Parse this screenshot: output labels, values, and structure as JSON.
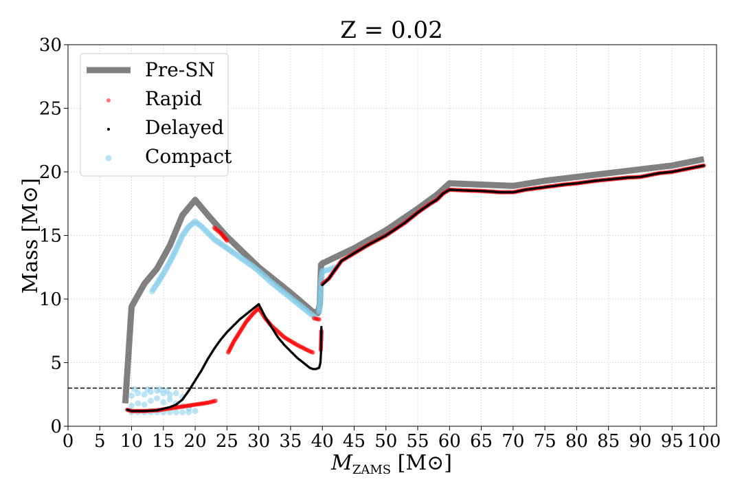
{
  "chart_data": {
    "type": "line",
    "title": "Z = 0.02",
    "xlabel_main": "M",
    "xlabel_sub": "ZAMS",
    "xlabel_unit": "[M⊙]",
    "ylabel": "Mass [M⊙]",
    "xlim": [
      0,
      102
    ],
    "ylim": [
      0,
      30
    ],
    "xticks": [
      0,
      5,
      10,
      15,
      20,
      25,
      30,
      35,
      40,
      45,
      50,
      55,
      60,
      65,
      70,
      75,
      80,
      85,
      90,
      95,
      100
    ],
    "yticks": [
      0,
      5,
      10,
      15,
      20,
      25,
      30
    ],
    "grid": true,
    "legend_position": "top-left",
    "threshold_line": {
      "y": 3.0,
      "style": "dashed",
      "color": "#000000"
    },
    "series": [
      {
        "name": "Pre-SN",
        "kind": "line",
        "color": "#808080",
        "points": [
          [
            9.0,
            1.8
          ],
          [
            10.0,
            9.4
          ],
          [
            12.0,
            11.2
          ],
          [
            14.0,
            12.4
          ],
          [
            16.0,
            14.2
          ],
          [
            18.0,
            16.6
          ],
          [
            20.0,
            17.8
          ],
          [
            22.0,
            16.6
          ],
          [
            25.0,
            14.9
          ],
          [
            30.0,
            12.5
          ],
          [
            35.0,
            10.5
          ],
          [
            38.5,
            9.0
          ],
          [
            39.3,
            8.9
          ],
          [
            39.6,
            9.6
          ],
          [
            39.8,
            12.7
          ],
          [
            40.0,
            12.8
          ],
          [
            45.0,
            14.0
          ],
          [
            50.0,
            15.4
          ],
          [
            55.0,
            17.1
          ],
          [
            58.0,
            18.2
          ],
          [
            60.0,
            19.1
          ],
          [
            65.0,
            19.0
          ],
          [
            70.0,
            18.9
          ],
          [
            75.0,
            19.3
          ],
          [
            80.0,
            19.6
          ],
          [
            85.0,
            19.9
          ],
          [
            90.0,
            20.2
          ],
          [
            95.0,
            20.5
          ],
          [
            100.0,
            21.0
          ]
        ]
      },
      {
        "name": "Rapid",
        "kind": "scatter",
        "color": "#ff0000",
        "segments": [
          [
            [
              9.3,
              1.3
            ],
            [
              10.0,
              1.2
            ],
            [
              12.0,
              1.2
            ],
            [
              14.0,
              1.25
            ],
            [
              16.0,
              1.4
            ],
            [
              18.0,
              1.55
            ],
            [
              20.0,
              1.7
            ],
            [
              22.0,
              1.85
            ],
            [
              23.2,
              2.0
            ]
          ],
          [
            [
              23.0,
              15.6
            ],
            [
              24.0,
              15.2
            ],
            [
              25.0,
              14.6
            ]
          ],
          [
            [
              25.2,
              5.8
            ],
            [
              26.0,
              6.6
            ],
            [
              27.0,
              7.4
            ],
            [
              28.0,
              8.2
            ],
            [
              29.0,
              8.8
            ],
            [
              30.0,
              9.3
            ],
            [
              31.0,
              8.5
            ],
            [
              32.0,
              7.9
            ],
            [
              34.0,
              7.0
            ],
            [
              36.0,
              6.4
            ],
            [
              38.0,
              5.9
            ],
            [
              38.5,
              5.8
            ]
          ],
          [
            [
              38.7,
              8.5
            ],
            [
              39.0,
              8.45
            ],
            [
              39.5,
              8.4
            ]
          ],
          [
            [
              39.75,
              6.0
            ],
            [
              39.8,
              6.6
            ],
            [
              39.85,
              7.5
            ]
          ],
          [
            [
              40.0,
              11.2
            ],
            [
              41.0,
              11.6
            ],
            [
              42.0,
              12.3
            ],
            [
              43.0,
              13.0
            ],
            [
              45.0,
              13.6
            ],
            [
              47.0,
              14.2
            ],
            [
              50.0,
              15.0
            ],
            [
              53.0,
              16.0
            ],
            [
              55.0,
              16.8
            ],
            [
              57.0,
              17.5
            ],
            [
              58.0,
              17.8
            ],
            [
              59.0,
              18.3
            ],
            [
              60.0,
              18.6
            ],
            [
              62.0,
              18.55
            ],
            [
              65.0,
              18.5
            ],
            [
              68.0,
              18.4
            ],
            [
              70.0,
              18.4
            ],
            [
              72.0,
              18.6
            ],
            [
              75.0,
              18.8
            ],
            [
              78.0,
              19.0
            ],
            [
              80.0,
              19.1
            ],
            [
              83.0,
              19.3
            ],
            [
              85.0,
              19.4
            ],
            [
              88.0,
              19.55
            ],
            [
              90.0,
              19.6
            ],
            [
              93.0,
              19.9
            ],
            [
              95.0,
              20.0
            ],
            [
              98.0,
              20.3
            ],
            [
              100.0,
              20.5
            ]
          ]
        ]
      },
      {
        "name": "Delayed",
        "kind": "scatter",
        "color": "#000000",
        "segments": [
          [
            [
              9.3,
              1.3
            ],
            [
              10.0,
              1.2
            ],
            [
              12.0,
              1.2
            ],
            [
              14.0,
              1.25
            ],
            [
              16.0,
              1.5
            ],
            [
              17.0,
              1.7
            ],
            [
              18.0,
              2.1
            ],
            [
              19.0,
              2.8
            ],
            [
              20.0,
              3.6
            ],
            [
              21.0,
              4.4
            ],
            [
              22.0,
              5.3
            ],
            [
              23.0,
              6.1
            ],
            [
              24.0,
              6.8
            ],
            [
              25.0,
              7.4
            ],
            [
              26.0,
              7.9
            ],
            [
              27.0,
              8.4
            ],
            [
              28.0,
              8.8
            ],
            [
              29.0,
              9.2
            ],
            [
              30.0,
              9.6
            ],
            [
              31.0,
              8.6
            ],
            [
              32.0,
              7.8
            ],
            [
              33.0,
              7.0
            ],
            [
              34.0,
              6.4
            ],
            [
              35.0,
              5.9
            ],
            [
              36.0,
              5.4
            ],
            [
              37.0,
              5.0
            ],
            [
              38.0,
              4.6
            ],
            [
              38.5,
              4.5
            ],
            [
              39.0,
              4.5
            ],
            [
              39.5,
              4.6
            ],
            [
              39.7,
              5.0
            ],
            [
              39.8,
              6.0
            ],
            [
              39.85,
              7.8
            ]
          ],
          [
            [
              40.0,
              11.1
            ],
            [
              41.0,
              11.6
            ],
            [
              42.0,
              12.3
            ],
            [
              43.0,
              13.0
            ],
            [
              45.0,
              13.6
            ],
            [
              47.0,
              14.2
            ],
            [
              50.0,
              15.0
            ],
            [
              53.0,
              16.0
            ],
            [
              55.0,
              16.8
            ],
            [
              57.0,
              17.5
            ],
            [
              58.0,
              17.8
            ],
            [
              59.0,
              18.3
            ],
            [
              60.0,
              18.6
            ],
            [
              62.0,
              18.55
            ],
            [
              65.0,
              18.5
            ],
            [
              68.0,
              18.4
            ],
            [
              70.0,
              18.4
            ],
            [
              72.0,
              18.6
            ],
            [
              75.0,
              18.8
            ],
            [
              78.0,
              19.0
            ],
            [
              80.0,
              19.1
            ],
            [
              83.0,
              19.3
            ],
            [
              85.0,
              19.4
            ],
            [
              88.0,
              19.55
            ],
            [
              90.0,
              19.6
            ],
            [
              93.0,
              19.9
            ],
            [
              95.0,
              20.0
            ],
            [
              98.0,
              20.3
            ],
            [
              100.0,
              20.5
            ]
          ]
        ]
      },
      {
        "name": "Compact",
        "kind": "scatter",
        "color": "#87ceeb",
        "segments": [
          [
            [
              10.0,
              1.1
            ],
            [
              11.0,
              1.1
            ],
            [
              12.0,
              1.1
            ],
            [
              13.0,
              1.1
            ],
            [
              14.0,
              1.1
            ],
            [
              15.0,
              1.1
            ],
            [
              16.0,
              1.1
            ],
            [
              17.0,
              1.1
            ],
            [
              18.0,
              1.1
            ],
            [
              19.0,
              1.1
            ],
            [
              20.0,
              1.2
            ],
            [
              10.0,
              1.6
            ],
            [
              11.0,
              1.8
            ],
            [
              12.0,
              1.7
            ],
            [
              13.0,
              2.0
            ],
            [
              14.0,
              2.2
            ],
            [
              15.0,
              1.9
            ],
            [
              16.0,
              2.1
            ],
            [
              17.0,
              1.8
            ],
            [
              18.0,
              1.6
            ],
            [
              19.0,
              1.4
            ],
            [
              10.0,
              2.4
            ],
            [
              11.0,
              2.6
            ],
            [
              12.0,
              2.5
            ],
            [
              13.0,
              2.7
            ],
            [
              14.0,
              2.8
            ],
            [
              15.0,
              2.6
            ],
            [
              16.0,
              2.5
            ],
            [
              17.0,
              2.6
            ],
            [
              18.0,
              2.3
            ],
            [
              10.5,
              2.9
            ],
            [
              12.5,
              2.9
            ],
            [
              14.5,
              2.9
            ],
            [
              15.5,
              2.8
            ]
          ],
          [
            [
              13.2,
              10.6
            ],
            [
              14.0,
              11.2
            ],
            [
              15.0,
              12.0
            ],
            [
              16.0,
              12.9
            ],
            [
              17.0,
              13.9
            ],
            [
              18.0,
              15.0
            ],
            [
              19.0,
              15.7
            ],
            [
              20.0,
              16.1
            ],
            [
              21.0,
              15.7
            ],
            [
              22.0,
              15.2
            ],
            [
              23.0,
              14.7
            ],
            [
              25.0,
              14.0
            ],
            [
              27.0,
              13.3
            ],
            [
              29.0,
              12.6
            ],
            [
              30.0,
              12.2
            ],
            [
              32.0,
              11.3
            ],
            [
              34.0,
              10.5
            ],
            [
              36.0,
              9.7
            ],
            [
              38.0,
              8.9
            ],
            [
              38.8,
              8.6
            ]
          ],
          [
            [
              39.5,
              9.0
            ],
            [
              39.7,
              10.2
            ],
            [
              39.8,
              11.5
            ],
            [
              40.0,
              12.2
            ],
            [
              41.0,
              12.3
            ],
            [
              42.0,
              12.5
            ]
          ]
        ]
      }
    ]
  }
}
